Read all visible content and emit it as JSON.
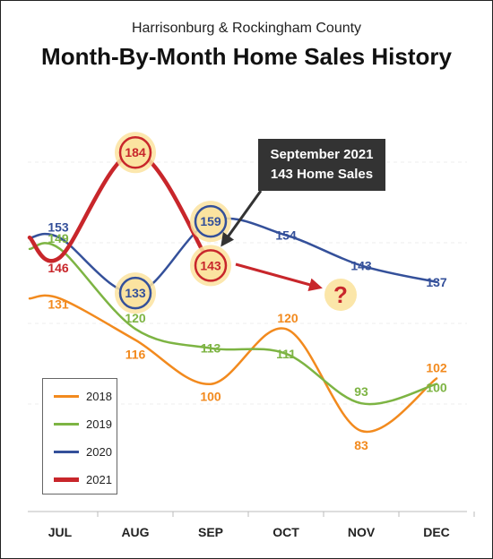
{
  "header": {
    "subtitle": "Harrisonburg & Rockingham County",
    "title": "Month-By-Month Home Sales History"
  },
  "callout": {
    "line1": "September 2021",
    "line2": "143 Home Sales"
  },
  "question_mark": "?",
  "colors": {
    "2018": "#f28a1e",
    "2019": "#7db443",
    "2020": "#34509a",
    "2021": "#c8262b",
    "highlight": "#fbe3a0"
  },
  "chart_data": {
    "type": "line",
    "title": "Month-By-Month Home Sales History",
    "subtitle": "Harrisonburg & Rockingham County",
    "categories": [
      "JUL",
      "AUG",
      "SEP",
      "OCT",
      "NOV",
      "DEC"
    ],
    "ylim": [
      70,
      200
    ],
    "grid": false,
    "legend_position": "bottom-left",
    "series": [
      {
        "name": "2018",
        "values": [
          131,
          116,
          100,
          120,
          83,
          102
        ]
      },
      {
        "name": "2019",
        "values": [
          149,
          120,
          113,
          111,
          93,
          100
        ]
      },
      {
        "name": "2020",
        "values": [
          153,
          133,
          159,
          154,
          143,
          137
        ]
      },
      {
        "name": "2021",
        "values": [
          146,
          184,
          143,
          null,
          null,
          null
        ]
      }
    ]
  }
}
